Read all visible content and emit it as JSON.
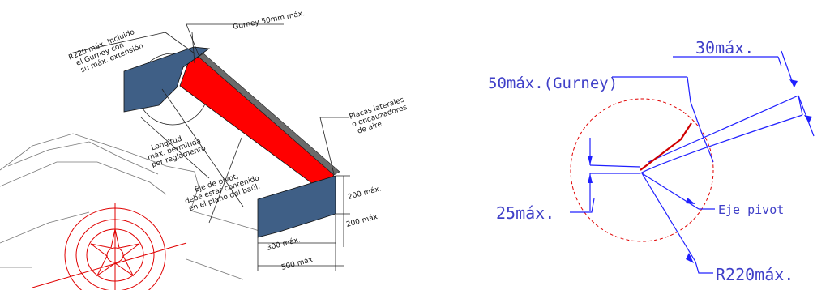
{
  "left": {
    "labels": {
      "r220": [
        "R220 máx. Incluido",
        "el Gurney con",
        "su máx. extensión"
      ],
      "gurney": "Gurney 50mm máx.",
      "placas": [
        "Placas laterales",
        "o encauzadores",
        "de aire"
      ],
      "longitud": [
        "Longitud",
        "máx. permitida",
        "por reglamento"
      ],
      "eje": [
        "Eje de pivot,",
        "debe estar contenido",
        "en el plano del baúl."
      ],
      "dim200a": "200 máx.",
      "dim200b": "200 máx.",
      "dim300": "300 máx.",
      "dim500": "500 máx."
    }
  },
  "right": {
    "labels": {
      "dim30": "30máx.",
      "dim50": "50máx.(Gurney)",
      "dim25": "25máx.",
      "eje": "Eje pivot",
      "r220": "R220máx."
    }
  },
  "colors": {
    "wing_red": "#ff0000",
    "endplate": "#3f5f86",
    "blue_dim": "#2020ff",
    "blue_text": "#3f3fc8",
    "circle_red": "#e00000"
  }
}
